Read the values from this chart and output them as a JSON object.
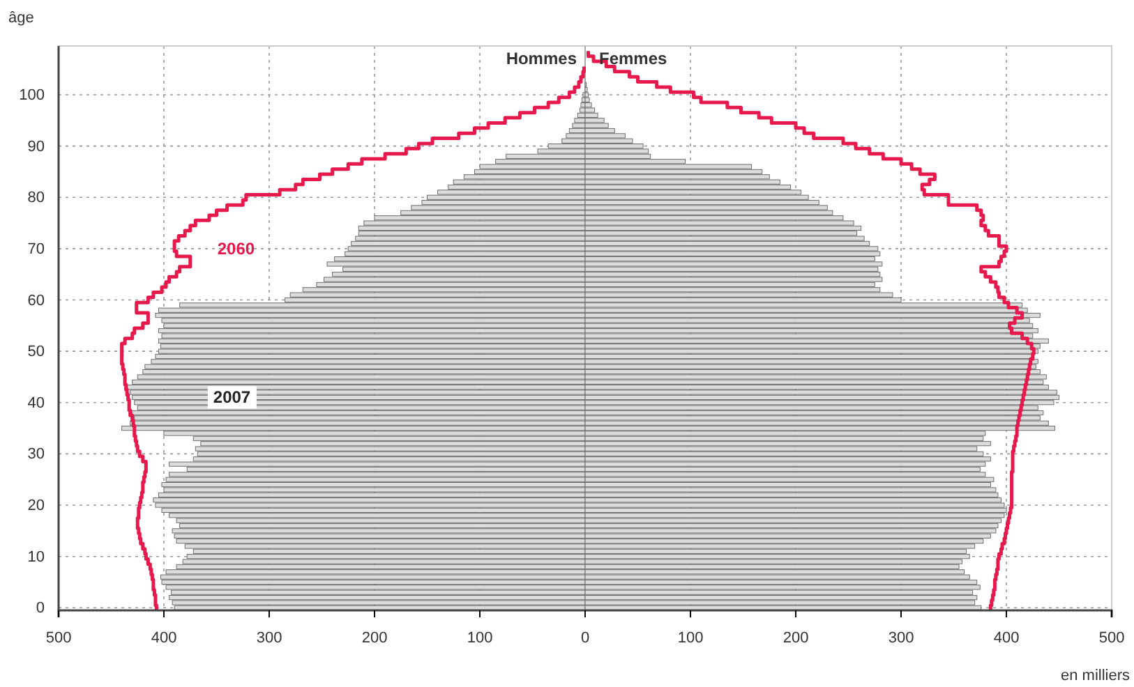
{
  "chart_data": {
    "type": "bar",
    "orientation": "horizontal",
    "stacked": true,
    "ylabel": "âge",
    "xlabel": "en milliers",
    "annotations": [
      "Hommes",
      "Femmes"
    ],
    "categories": [
      null,
      null,
      null,
      null,
      null,
      null,
      null,
      null,
      null,
      "100",
      null,
      null,
      null,
      null,
      null,
      null,
      null,
      null,
      null,
      "90",
      null,
      null,
      null,
      null,
      null,
      null,
      null,
      null,
      null,
      "80",
      null,
      null,
      null,
      null,
      null,
      null,
      null,
      null,
      null,
      "70",
      null,
      null,
      null,
      null,
      null,
      null,
      null,
      null,
      null,
      "60",
      null,
      null,
      null,
      null,
      null,
      null,
      null,
      null,
      null,
      "50",
      null,
      null,
      null,
      null,
      null,
      null,
      null,
      null,
      null,
      "40",
      null,
      null,
      null,
      null,
      null,
      null,
      null,
      null,
      null,
      "30",
      null,
      null,
      null,
      null,
      null,
      null,
      null,
      null,
      null,
      "20",
      null,
      null,
      null,
      null,
      null,
      null,
      null,
      null,
      null,
      "10",
      null,
      null,
      null,
      null,
      null,
      null,
      null,
      null,
      null,
      "0"
    ],
    "xlim": [
      -500,
      500
    ],
    "xticks": [
      {
        "value": -500,
        "label": "500"
      },
      {
        "value": -400,
        "label": "400"
      },
      {
        "value": -300,
        "label": "300"
      },
      {
        "value": -200,
        "label": "200"
      },
      {
        "value": -100,
        "label": "100"
      },
      0,
      100,
      200,
      300,
      400,
      500
    ],
    "grid": true,
    "series": [
      {
        "name": "2007",
        "color": "#dcdcdc",
        "values": [
          null,
          null,
          null,
          null,
          null,
          null,
          null,
          null,
          null,
          -2,
          -3,
          -4,
          -5,
          -7,
          -10,
          -12,
          -15,
          -18,
          -22,
          -35,
          -45,
          -75,
          -85,
          -100,
          -105,
          -115,
          -125,
          -130,
          -140,
          -150,
          -155,
          -165,
          -175,
          -200,
          -210,
          -215,
          -215,
          -218,
          -222,
          -225,
          -228,
          -238,
          -245,
          -230,
          -240,
          -248,
          -255,
          -268,
          -280,
          -285,
          -385,
          -405,
          -408,
          -402,
          -400,
          -405,
          -402,
          -405,
          -403,
          -405,
          -408,
          -412,
          -418,
          -420,
          -425,
          -430,
          -435,
          -432,
          -430,
          -428,
          -425,
          -430,
          -428,
          -432,
          -440,
          -400,
          -372,
          -365,
          -370,
          -368,
          -372,
          -395,
          -378,
          -395,
          -398,
          -402,
          -400,
          -405,
          -410,
          -408,
          -402,
          -395,
          -388,
          -385,
          -392,
          -390,
          -388,
          -380,
          -372,
          -378,
          -382,
          -388,
          -398,
          -403,
          -402,
          -398,
          -393,
          -395,
          -392,
          -390
        ]
      },
      {
        "color": "#dcdcdc",
        "values": [
          null,
          null,
          null,
          null,
          null,
          null,
          null,
          1,
          2,
          3,
          4,
          6,
          9,
          12,
          18,
          22,
          28,
          38,
          45,
          55,
          60,
          62,
          95,
          158,
          168,
          175,
          185,
          195,
          205,
          212,
          222,
          230,
          235,
          245,
          255,
          262,
          258,
          265,
          270,
          278,
          280,
          275,
          282,
          278,
          280,
          282,
          275,
          280,
          292,
          300,
          415,
          420,
          432,
          422,
          425,
          430,
          425,
          440,
          432,
          430,
          425,
          430,
          428,
          432,
          438,
          435,
          440,
          448,
          450,
          445,
          430,
          435,
          432,
          440,
          446,
          380,
          378,
          385,
          372,
          378,
          385,
          380,
          375,
          380,
          388,
          385,
          390,
          392,
          395,
          398,
          400,
          398,
          395,
          392,
          390,
          385,
          378,
          370,
          362,
          365,
          358,
          355,
          360,
          365,
          372,
          375,
          368,
          372,
          370,
          376
        ]
      },
      {
        "name": "2060",
        "type": "step",
        "color": "#e5194b",
        "values": [
          null,
          null,
          null,
          null,
          -1,
          -2,
          -4,
          -6,
          -10,
          -15,
          -25,
          -35,
          -48,
          -62,
          -76,
          -92,
          -105,
          -120,
          -145,
          -158,
          -170,
          -190,
          -212,
          -225,
          -240,
          -252,
          -268,
          -275,
          -290,
          -322,
          -325,
          -340,
          -350,
          -357,
          -370,
          -375,
          -380,
          -386,
          -390,
          -390,
          -388,
          -375,
          -375,
          -385,
          -388,
          -395,
          -398,
          -402,
          -410,
          -415,
          -426,
          -426,
          -415,
          -415,
          -420,
          -428,
          -430,
          -437,
          -440,
          -440,
          -440,
          -440,
          -439,
          -438,
          -437,
          -437,
          -436,
          -435,
          -434,
          -433,
          -433,
          -432,
          -430,
          -429,
          -428,
          -428,
          -427,
          -426,
          -425,
          -423,
          -420,
          -417,
          -417,
          -418,
          -419,
          -420,
          -420,
          -421,
          -422,
          -423,
          -424,
          -424,
          -425,
          -425,
          -424,
          -423,
          -422,
          -420,
          -418,
          -417,
          -415,
          -413,
          -412,
          -411,
          -410,
          -410,
          -409,
          -408,
          -408,
          -407
        ]
      },
      {
        "type": "step",
        "color": "#e5194b",
        "values": [
          null,
          3,
          8,
          20,
          28,
          42,
          50,
          68,
          81,
          103,
          110,
          135,
          148,
          165,
          177,
          200,
          208,
          217,
          245,
          257,
          270,
          283,
          300,
          310,
          318,
          332,
          327,
          320,
          322,
          345,
          345,
          372,
          376,
          378,
          376,
          380,
          383,
          393,
          393,
          400,
          398,
          395,
          393,
          376,
          380,
          385,
          390,
          392,
          393,
          398,
          402,
          410,
          415,
          408,
          403,
          405,
          415,
          420,
          424,
          426,
          425,
          423,
          422,
          421,
          420,
          419,
          418,
          417,
          416,
          415,
          414,
          413,
          412,
          411,
          410,
          410,
          409,
          408,
          407,
          406,
          406,
          406,
          406,
          405,
          405,
          405,
          405,
          405,
          405,
          405,
          404,
          403,
          402,
          401,
          400,
          399,
          398,
          396,
          395,
          393,
          392,
          392,
          391,
          390,
          389,
          389,
          388,
          387,
          386,
          385
        ]
      }
    ]
  }
}
